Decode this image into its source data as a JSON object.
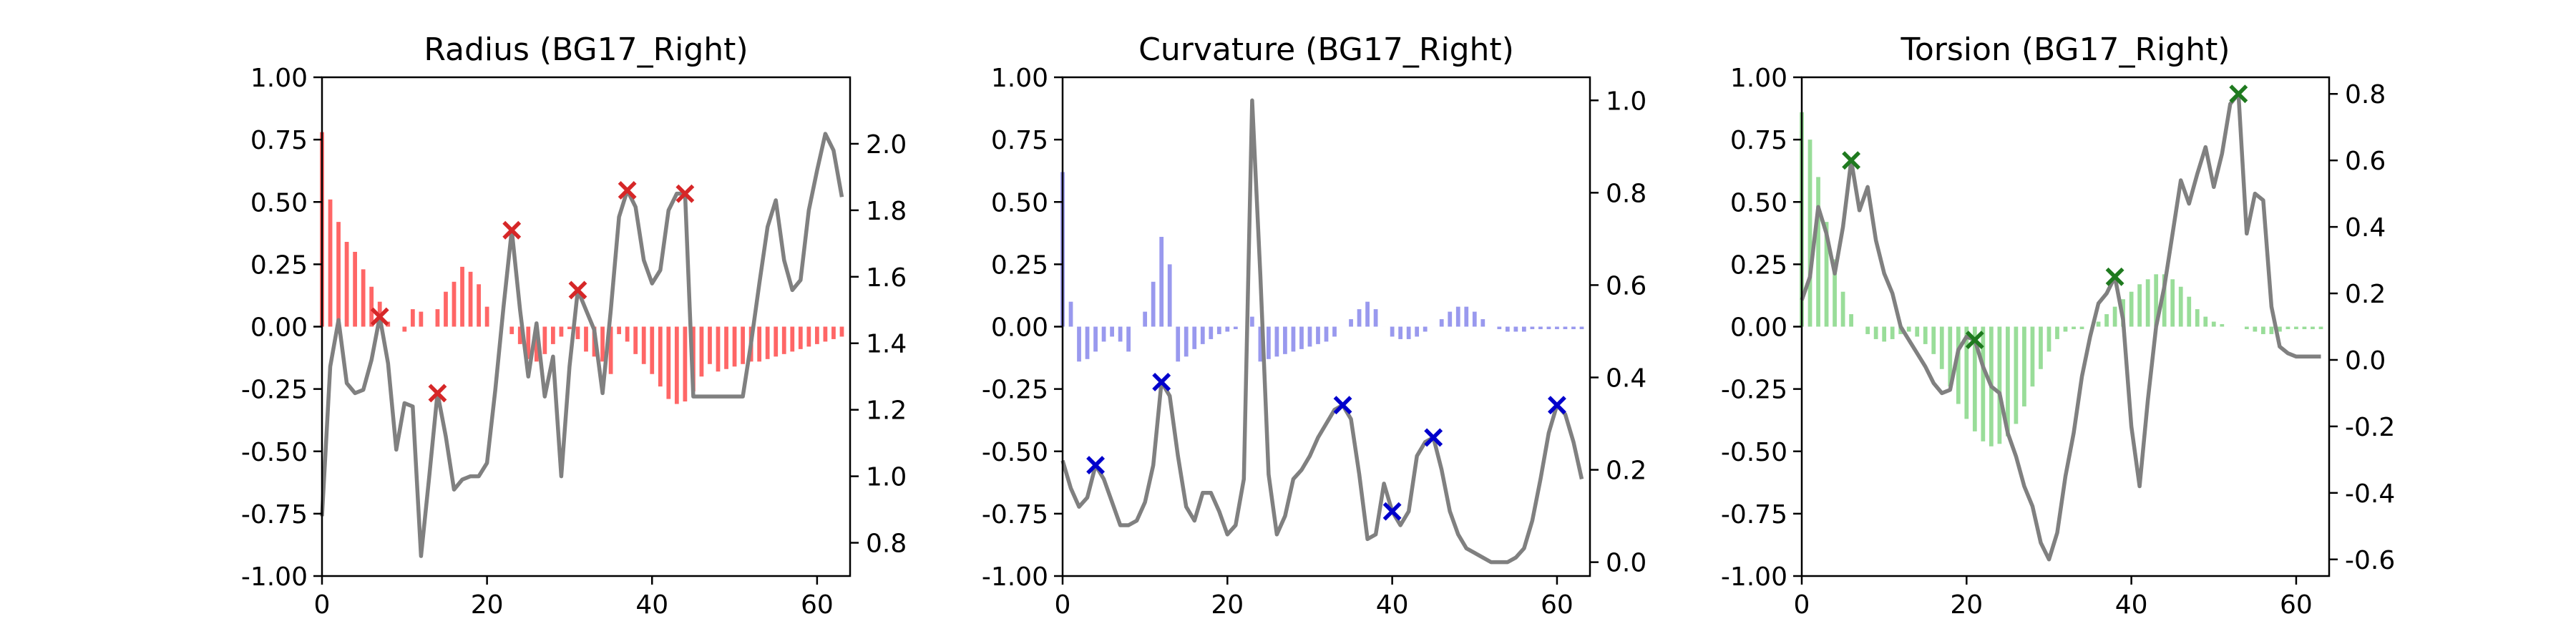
{
  "chart_data": [
    {
      "type": "bar",
      "title": "Radius (BG17_Right)",
      "bar_color": "#ff6666",
      "marker_color": "#d62728",
      "line_color": "#808080",
      "xlim": [
        0,
        64
      ],
      "xticks": [
        0,
        20,
        40,
        60
      ],
      "ylim": [
        -1.0,
        1.0
      ],
      "yticks": [
        "-1.00",
        "-0.75",
        "-0.50",
        "-0.25",
        "0.00",
        "0.25",
        "0.50",
        "0.75",
        "1.00"
      ],
      "y2lim": [
        0.7,
        2.2
      ],
      "y2ticks": [
        "0.8",
        "1.0",
        "1.2",
        "1.4",
        "1.6",
        "1.8",
        "2.0"
      ],
      "bar_values": [
        0.78,
        0.51,
        0.42,
        0.34,
        0.3,
        0.23,
        0.16,
        0.1,
        0.02,
        0.0,
        -0.02,
        0.07,
        0.06,
        0.0,
        0.07,
        0.14,
        0.18,
        0.24,
        0.22,
        0.17,
        0.08,
        0.0,
        0.0,
        -0.03,
        -0.07,
        -0.13,
        -0.14,
        -0.11,
        -0.07,
        -0.04,
        -0.01,
        -0.05,
        -0.1,
        -0.12,
        -0.14,
        -0.19,
        -0.03,
        -0.06,
        -0.11,
        -0.15,
        -0.19,
        -0.24,
        -0.29,
        -0.31,
        -0.3,
        -0.26,
        -0.2,
        -0.15,
        -0.18,
        -0.17,
        -0.16,
        -0.15,
        -0.14,
        -0.14,
        -0.13,
        -0.12,
        -0.11,
        -0.1,
        -0.09,
        -0.08,
        -0.07,
        -0.06,
        -0.05,
        -0.04
      ],
      "line_values": [
        0.88,
        1.33,
        1.47,
        1.28,
        1.25,
        1.26,
        1.35,
        1.48,
        1.34,
        1.08,
        1.22,
        1.21,
        0.76,
        1.0,
        1.25,
        1.12,
        0.96,
        0.99,
        1.0,
        1.0,
        1.04,
        1.26,
        1.51,
        1.74,
        1.5,
        1.3,
        1.46,
        1.24,
        1.36,
        1.0,
        1.33,
        1.56,
        1.5,
        1.44,
        1.25,
        1.5,
        1.78,
        1.86,
        1.81,
        1.65,
        1.58,
        1.62,
        1.8,
        1.85,
        1.85,
        1.24,
        1.24,
        1.24,
        1.24,
        1.24,
        1.24,
        1.24,
        1.4,
        1.58,
        1.75,
        1.83,
        1.65,
        1.56,
        1.59,
        1.8,
        1.92,
        2.03,
        1.98,
        1.84
      ],
      "peaks": [
        7,
        14,
        23,
        31,
        37,
        44
      ]
    },
    {
      "type": "bar",
      "title": "Curvature (BG17_Right)",
      "bar_color": "#9999ee",
      "marker_color": "#0000cc",
      "line_color": "#808080",
      "xlim": [
        0,
        64
      ],
      "xticks": [
        0,
        20,
        40,
        60
      ],
      "ylim": [
        -1.0,
        1.0
      ],
      "yticks": [
        "-1.00",
        "-0.75",
        "-0.50",
        "-0.25",
        "0.00",
        "0.25",
        "0.50",
        "0.75",
        "1.00"
      ],
      "y2lim": [
        -0.03,
        1.05
      ],
      "y2ticks": [
        "0.0",
        "0.2",
        "0.4",
        "0.6",
        "0.8",
        "1.0"
      ],
      "bar_values": [
        0.62,
        0.1,
        -0.14,
        -0.13,
        -0.1,
        -0.06,
        -0.04,
        -0.06,
        -0.1,
        0.0,
        0.06,
        0.18,
        0.36,
        0.25,
        -0.14,
        -0.12,
        -0.09,
        -0.07,
        -0.05,
        -0.03,
        -0.02,
        -0.01,
        0.0,
        0.04,
        -0.14,
        -0.13,
        -0.12,
        -0.11,
        -0.1,
        -0.09,
        -0.08,
        -0.07,
        -0.06,
        -0.04,
        0.0,
        0.03,
        0.07,
        0.1,
        0.07,
        0.0,
        -0.04,
        -0.05,
        -0.05,
        -0.04,
        -0.02,
        0.0,
        0.03,
        0.06,
        0.08,
        0.08,
        0.06,
        0.03,
        0.0,
        -0.01,
        -0.02,
        -0.02,
        -0.02,
        -0.01,
        -0.01,
        -0.01,
        -0.01,
        -0.01,
        -0.01,
        -0.01
      ],
      "line_values": [
        0.22,
        0.16,
        0.12,
        0.14,
        0.21,
        0.18,
        0.13,
        0.08,
        0.08,
        0.09,
        0.13,
        0.21,
        0.39,
        0.36,
        0.23,
        0.12,
        0.09,
        0.15,
        0.15,
        0.11,
        0.06,
        0.08,
        0.18,
        1.0,
        0.62,
        0.19,
        0.06,
        0.1,
        0.18,
        0.2,
        0.23,
        0.27,
        0.3,
        0.33,
        0.34,
        0.31,
        0.19,
        0.05,
        0.06,
        0.17,
        0.11,
        0.08,
        0.11,
        0.23,
        0.26,
        0.27,
        0.2,
        0.11,
        0.06,
        0.03,
        0.02,
        0.01,
        0.0,
        0.0,
        0.0,
        0.01,
        0.03,
        0.09,
        0.18,
        0.28,
        0.34,
        0.32,
        0.26,
        0.18
      ],
      "peaks": [
        4,
        12,
        34,
        40,
        45,
        60
      ]
    },
    {
      "type": "bar",
      "title": "Torsion (BG17_Right)",
      "bar_color": "#99dd99",
      "marker_color": "#1f7a1f",
      "line_color": "#808080",
      "xlim": [
        0,
        64
      ],
      "xticks": [
        0,
        20,
        40,
        60
      ],
      "ylim": [
        -1.0,
        1.0
      ],
      "yticks": [
        "-1.00",
        "-0.75",
        "-0.50",
        "-0.25",
        "0.00",
        "0.25",
        "0.50",
        "0.75",
        "1.00"
      ],
      "y2lim": [
        -0.65,
        0.85
      ],
      "y2ticks": [
        "-0.6",
        "-0.4",
        "-0.2",
        "0.0",
        "0.2",
        "0.4",
        "0.6",
        "0.8"
      ],
      "bar_values": [
        0.86,
        0.75,
        0.6,
        0.42,
        0.27,
        0.14,
        0.05,
        0.0,
        -0.03,
        -0.05,
        -0.06,
        -0.05,
        -0.03,
        -0.02,
        -0.04,
        -0.07,
        -0.11,
        -0.17,
        -0.24,
        -0.31,
        -0.37,
        -0.42,
        -0.46,
        -0.48,
        -0.47,
        -0.44,
        -0.39,
        -0.32,
        -0.24,
        -0.17,
        -0.1,
        -0.05,
        -0.02,
        -0.01,
        -0.01,
        0.0,
        0.02,
        0.05,
        0.08,
        0.11,
        0.14,
        0.17,
        0.19,
        0.21,
        0.21,
        0.19,
        0.16,
        0.12,
        0.07,
        0.04,
        0.02,
        0.01,
        0.0,
        0.0,
        -0.01,
        -0.02,
        -0.03,
        -0.03,
        -0.02,
        -0.01,
        -0.01,
        -0.01,
        -0.01,
        -0.01
      ],
      "line_values": [
        0.18,
        0.25,
        0.46,
        0.38,
        0.26,
        0.4,
        0.6,
        0.45,
        0.52,
        0.36,
        0.26,
        0.2,
        0.1,
        0.06,
        0.02,
        -0.02,
        -0.07,
        -0.1,
        -0.09,
        0.03,
        0.07,
        0.06,
        -0.02,
        -0.08,
        -0.1,
        -0.22,
        -0.29,
        -0.38,
        -0.44,
        -0.55,
        -0.6,
        -0.52,
        -0.35,
        -0.22,
        -0.05,
        0.07,
        0.17,
        0.2,
        0.25,
        0.12,
        -0.2,
        -0.38,
        -0.12,
        0.1,
        0.22,
        0.38,
        0.54,
        0.47,
        0.56,
        0.64,
        0.52,
        0.62,
        0.77,
        0.8,
        0.38,
        0.5,
        0.48,
        0.16,
        0.04,
        0.02,
        0.01,
        0.01,
        0.01,
        0.01
      ],
      "peaks": [
        6,
        21,
        38,
        53
      ]
    }
  ]
}
